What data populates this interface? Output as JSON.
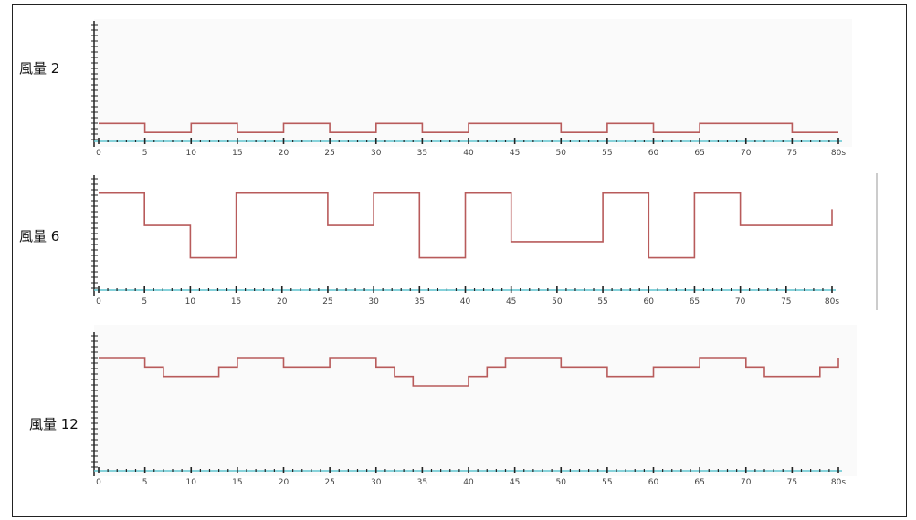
{
  "colors": {
    "signal": "#b85b5b",
    "baseline": "#5fc4cf",
    "ticks": "#222222",
    "panel_bg": "#fafafa"
  },
  "labels": [
    "風量 2",
    "風量 6",
    "風量 12"
  ],
  "chart_data": [
    {
      "type": "line",
      "label": "風量 2",
      "xlim": [
        0,
        80
      ],
      "xticks": [
        "0",
        "5",
        "10",
        "15",
        "20",
        "25",
        "30",
        "35",
        "40",
        "45",
        "50",
        "55",
        "60",
        "65",
        "70",
        "75",
        "80s"
      ],
      "series": [
        {
          "x": [
            0,
            5,
            5,
            10,
            10,
            15,
            15,
            20,
            20,
            25,
            25,
            30,
            30,
            35,
            35,
            40,
            40,
            50,
            50,
            55,
            55,
            60,
            60,
            65,
            65,
            75,
            75,
            80
          ],
          "y": [
            2,
            2,
            1,
            1,
            2,
            2,
            1,
            1,
            2,
            2,
            1,
            1,
            2,
            2,
            1,
            1,
            2,
            2,
            1,
            1,
            2,
            2,
            1,
            1,
            2,
            2,
            1,
            1
          ]
        }
      ]
    },
    {
      "type": "line",
      "label": "風量 6",
      "xlim": [
        0,
        80
      ],
      "xticks": [
        "0",
        "5",
        "10",
        "15",
        "20",
        "25",
        "30",
        "35",
        "40",
        "45",
        "50",
        "55",
        "60",
        "65",
        "70",
        "75",
        "80s"
      ],
      "series": [
        {
          "x": [
            0,
            5,
            5,
            10,
            10,
            15,
            15,
            25,
            25,
            30,
            30,
            35,
            35,
            40,
            40,
            45,
            45,
            55,
            55,
            60,
            60,
            65,
            65,
            70,
            70,
            80,
            80
          ],
          "y": [
            6,
            6,
            4,
            4,
            2,
            2,
            6,
            6,
            4,
            4,
            6,
            6,
            2,
            2,
            6,
            6,
            3,
            3,
            6,
            6,
            2,
            2,
            6,
            6,
            4,
            4,
            5
          ]
        }
      ]
    },
    {
      "type": "line",
      "label": "風量 12",
      "xlim": [
        0,
        80
      ],
      "xticks": [
        "0",
        "5",
        "10",
        "15",
        "20",
        "25",
        "30",
        "35",
        "40",
        "45",
        "50",
        "55",
        "60",
        "65",
        "70",
        "75",
        "80s"
      ],
      "series": [
        {
          "x": [
            0,
            5,
            5,
            7,
            7,
            13,
            13,
            15,
            15,
            20,
            20,
            25,
            25,
            30,
            30,
            32,
            32,
            34,
            34,
            40,
            40,
            42,
            42,
            44,
            44,
            50,
            50,
            55,
            55,
            60,
            60,
            65,
            65,
            70,
            70,
            72,
            72,
            78,
            78,
            80,
            80
          ],
          "y": [
            12,
            12,
            11,
            11,
            10,
            10,
            11,
            11,
            12,
            12,
            11,
            11,
            12,
            12,
            11,
            11,
            10,
            10,
            9,
            9,
            10,
            10,
            11,
            11,
            12,
            12,
            11,
            11,
            10,
            10,
            11,
            11,
            12,
            12,
            11,
            11,
            10,
            10,
            11,
            11,
            12
          ]
        }
      ]
    }
  ]
}
